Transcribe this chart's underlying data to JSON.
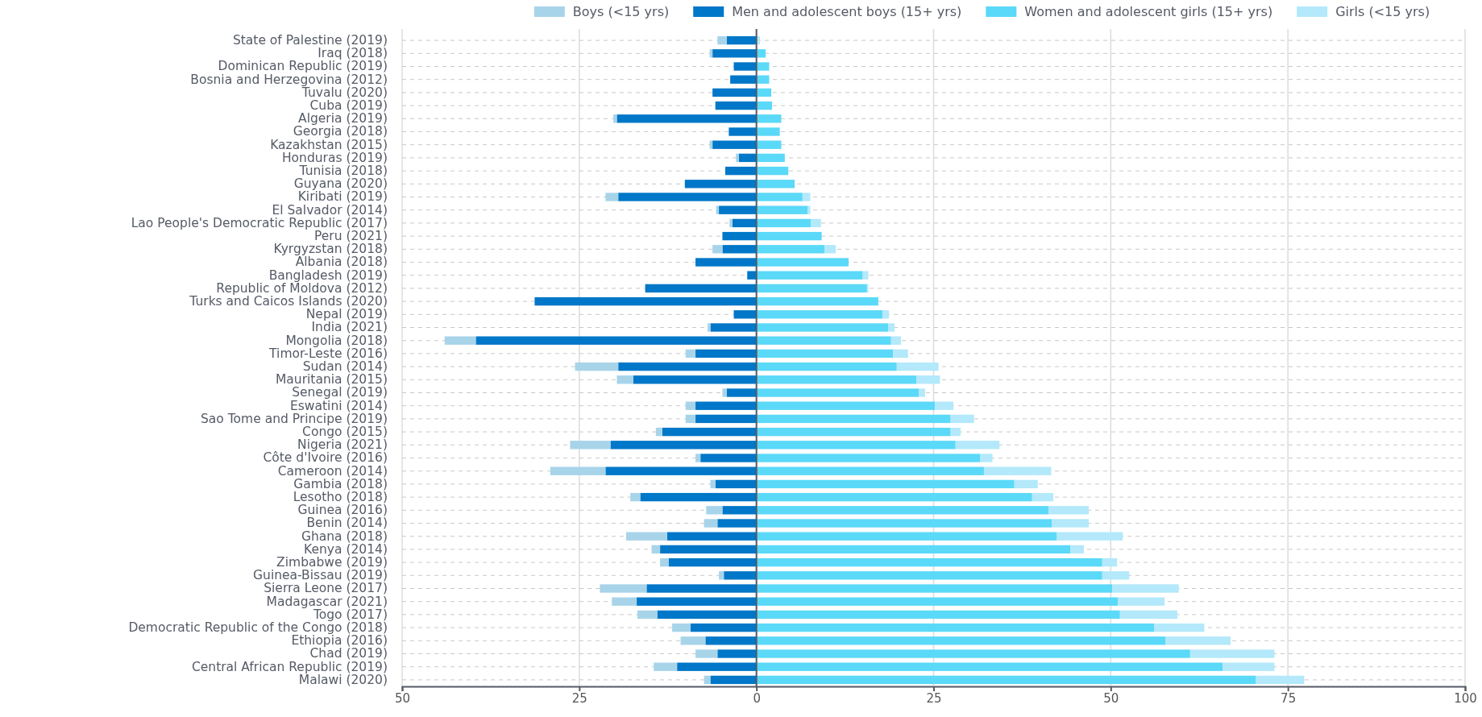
{
  "chart_data": {
    "type": "bar",
    "orientation": "horizontal",
    "stacked": true,
    "grid": true,
    "legend": "top",
    "categories": [
      "State of Palestine (2019)",
      "Iraq (2018)",
      "Dominican Republic (2019)",
      "Bosnia and Herzegovina (2012)",
      "Tuvalu (2020)",
      "Cuba (2019)",
      "Algeria (2019)",
      "Georgia (2018)",
      "Kazakhstan (2015)",
      "Honduras (2019)",
      "Tunisia (2018)",
      "Guyana (2020)",
      "Kiribati (2019)",
      "El Salvador (2014)",
      "Lao People's Democratic Republic (2017)",
      "Peru (2021)",
      "Kyrgyzstan (2018)",
      "Albania (2018)",
      "Bangladesh (2019)",
      "Republic of Moldova (2012)",
      "Turks and Caicos Islands (2020)",
      "Nepal (2019)",
      "India (2021)",
      "Mongolia (2018)",
      "Timor-Leste (2016)",
      "Sudan (2014)",
      "Mauritania (2015)",
      "Senegal (2019)",
      "Eswatini (2014)",
      "Sao Tome and Principe (2019)",
      "Congo (2015)",
      "Nigeria (2021)",
      "Côte d'Ivoire (2016)",
      "Cameroon (2014)",
      "Gambia (2018)",
      "Lesotho (2018)",
      "Guinea (2016)",
      "Benin (2014)",
      "Ghana (2018)",
      "Kenya (2014)",
      "Zimbabwe (2019)",
      "Guinea-Bissau (2019)",
      "Sierra Leone (2017)",
      "Madagascar (2021)",
      "Togo (2017)",
      "Democratic Republic of the Congo (2018)",
      "Ethiopia (2016)",
      "Chad (2019)",
      "Central African Republic (2019)",
      "Malawi (2020)"
    ],
    "series": [
      {
        "name": "Men and adolescent boys (15+ yrs)",
        "color": "#0077c8",
        "values": [
          -4.2,
          -6.2,
          -3.2,
          -3.7,
          -6.2,
          -5.8,
          -19.7,
          -3.9,
          -6.2,
          -2.5,
          -4.4,
          -10.1,
          -19.5,
          -5.3,
          -3.4,
          -4.8,
          -4.8,
          -8.6,
          -1.3,
          -15.7,
          -31.3,
          -3.2,
          -6.5,
          -39.6,
          -8.6,
          -19.5,
          -17.4,
          -4.2,
          -8.6,
          -8.6,
          -13.3,
          -20.6,
          -7.9,
          -21.3,
          -5.8,
          -16.4,
          -4.8,
          -5.5,
          -12.6,
          -13.6,
          -12.4,
          -4.6,
          -15.5,
          -16.9,
          -14.0,
          -9.3,
          -7.2,
          -5.5,
          -11.2,
          -6.5
        ]
      },
      {
        "name": "Boys (<15 yrs)",
        "color": "#a8d4ea",
        "values": [
          -1.3,
          -0.4,
          0,
          0,
          0,
          0,
          -0.5,
          0,
          -0.4,
          -0.4,
          0,
          0,
          -1.8,
          -0.4,
          -0.4,
          0,
          -1.4,
          0,
          0,
          0,
          0,
          0,
          -0.4,
          -4.4,
          -1.4,
          -6.1,
          -2.3,
          -0.6,
          -1.4,
          -1.4,
          -0.9,
          -5.7,
          -0.7,
          -7.8,
          -0.7,
          -1.4,
          -2.3,
          -1.9,
          -5.8,
          -1.2,
          -1.2,
          -0.7,
          -6.6,
          -3.5,
          -2.8,
          -2.6,
          -3.5,
          -3.1,
          -3.3,
          -0.9
        ]
      },
      {
        "name": "Women and adolescent girls (15+ yrs)",
        "color": "#5bd9f8",
        "values": [
          0,
          1.3,
          1.8,
          1.8,
          2.1,
          2.2,
          3.5,
          3.3,
          3.5,
          4.0,
          4.5,
          5.4,
          6.5,
          7.2,
          7.7,
          9.2,
          9.6,
          13.0,
          15.0,
          15.6,
          17.2,
          17.8,
          18.6,
          19.0,
          19.3,
          19.8,
          22.6,
          22.9,
          25.2,
          27.4,
          27.4,
          28.1,
          31.6,
          32.1,
          36.4,
          38.9,
          41.2,
          41.7,
          42.4,
          44.3,
          48.8,
          48.8,
          50.2,
          51.0,
          51.3,
          56.1,
          57.7,
          61.2,
          65.8,
          70.5
        ]
      },
      {
        "name": "Girls (<15 yrs)",
        "color": "#b3e9fa",
        "values": [
          0.5,
          0,
          0,
          0,
          0,
          0,
          0,
          0,
          0,
          0,
          0,
          0,
          1.1,
          0.4,
          1.4,
          0,
          1.6,
          0,
          0.8,
          0.2,
          0,
          0.9,
          0.9,
          1.4,
          2.1,
          5.9,
          3.3,
          0.9,
          2.6,
          3.3,
          1.4,
          6.2,
          1.7,
          9.5,
          3.3,
          3.0,
          5.7,
          5.2,
          9.3,
          1.9,
          2.1,
          3.8,
          9.4,
          6.6,
          8.1,
          7.1,
          9.2,
          11.9,
          7.3,
          6.8
        ]
      }
    ],
    "xlim": [
      -50,
      100
    ],
    "xticks": [
      {
        "value": -50,
        "label": "50"
      },
      {
        "value": -25,
        "label": "25"
      },
      0,
      25,
      50,
      75,
      100
    ]
  }
}
